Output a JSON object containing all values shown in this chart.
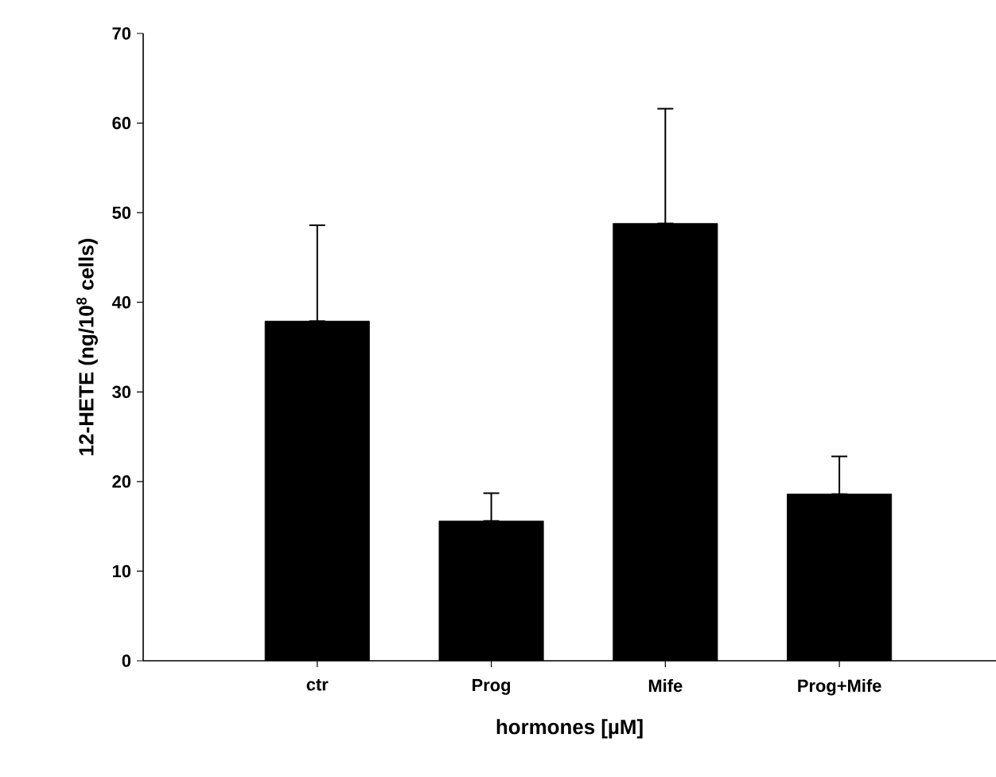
{
  "chart_data": {
    "type": "bar",
    "xlabel": "hormones [µM]",
    "ylabel": "12-HETE (ng/10$^{8}$ cells)",
    "categories": [
      "ctr",
      "Prog",
      "Mife",
      "Prog+Mife"
    ],
    "values": [
      37.9,
      15.6,
      48.8,
      18.6
    ],
    "errors": [
      [
        37.9,
        48.6
      ],
      [
        15.6,
        18.7
      ],
      [
        48.8,
        61.6
      ],
      [
        18.6,
        22.8
      ]
    ],
    "color": "#000000",
    "ylim": [
      0,
      70
    ],
    "yticks": [
      0,
      10,
      20,
      30,
      40,
      50,
      60,
      70
    ],
    "grid": false
  }
}
